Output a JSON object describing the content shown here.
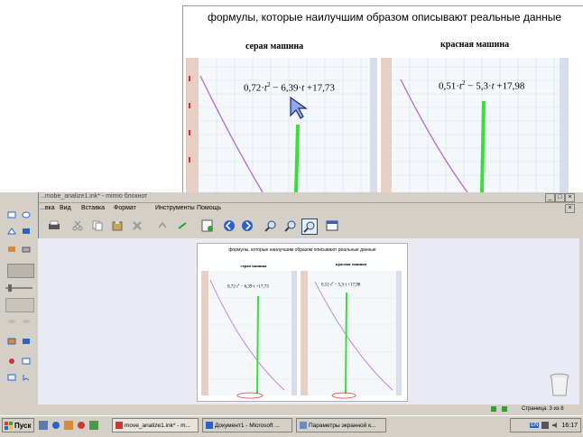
{
  "slide": {
    "title": "формулы, которые наилучшим образом описывают реальные данные",
    "left_car_title": "серая машина",
    "right_car_title": "красная машина",
    "left_formula": {
      "a": "0,72·",
      "t": "t",
      "exp": "2",
      "rest": " − 6,39·",
      "t2": "t",
      "tail": " +17,73"
    },
    "right_formula": {
      "a": "0,51·",
      "t": "t",
      "exp": "2",
      "rest": " − 5,3·",
      "t2": "t",
      "tail": " +17,98"
    }
  },
  "window": {
    "title": "...mobe_analize1.ink* - mimio блокнот"
  },
  "menu": [
    "...вка",
    "Вид",
    "Вставка",
    "Формат",
    "Инструменты",
    "Помощь"
  ],
  "status": {
    "page": "Страница: 3 из 8"
  },
  "taskbar": {
    "start_label": "Пуск",
    "tasks": [
      "move_analize1.ink* - m...",
      "Документ1 - Microsoft ...",
      "Параметры экранной к..."
    ],
    "tray_lang": "EN",
    "clock": "16:17"
  },
  "colors": {
    "curve": "#b06ad6",
    "arrow": "#3ddc3d",
    "ellipse": "#e03a3a",
    "taskbar": "#d4d0c8"
  }
}
